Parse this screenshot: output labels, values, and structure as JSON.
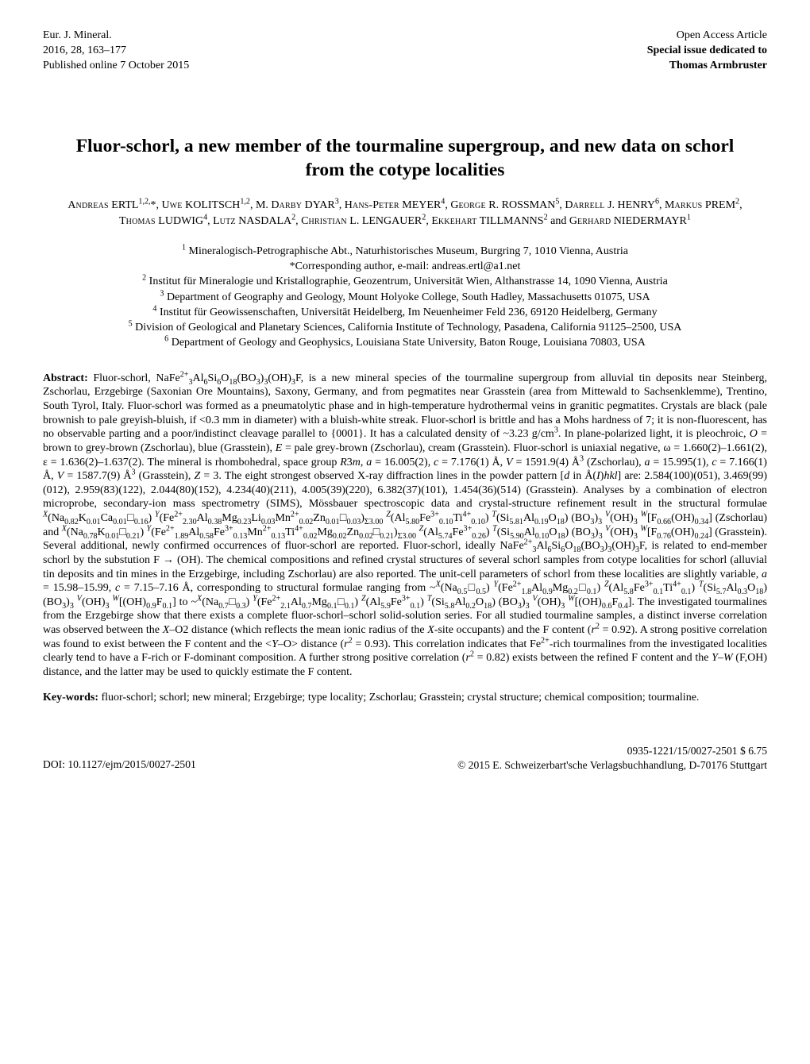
{
  "header": {
    "left": [
      "Eur. J. Mineral.",
      "2016, 28, 163–177",
      "Published online 7 October 2015"
    ],
    "right_plain": "Open Access Article",
    "right_bold1": "Special issue dedicated to",
    "right_bold2": "Thomas Armbruster"
  },
  "title": "Fluor-schorl, a new member of the tourmaline supergroup, and new data on schorl from the cotype localities",
  "authors_html": "A<span class='sc'>ndreas</span> ERTL<sup>1,2,</sup>*, U<span class='sc'>we</span> KOLITSCH<sup>1,2</sup>, M. D<span class='sc'>arby</span> DYAR<sup>3</sup>, H<span class='sc'>ans</span>-P<span class='sc'>eter</span> MEYER<sup>4</sup>, G<span class='sc'>eorge</span> R. ROSSMAN<sup>5</sup>, D<span class='sc'>arrell</span> J. HENRY<sup>6</sup>, M<span class='sc'>arkus</span> PREM<sup>2</sup>, T<span class='sc'>homas</span> LUDWIG<sup>4</sup>, L<span class='sc'>utz</span> NASDALA<sup>2</sup>, C<span class='sc'>hristian</span> L. LENGAUER<sup>2</sup>, E<span class='sc'>kkehart</span> TILLMANNS<sup>2</sup> and G<span class='sc'>erhard</span> NIEDERMAYR<sup>1</sup>",
  "affils_html": "<sup>1</sup> Mineralogisch-Petrographische Abt., Naturhistorisches Museum, Burgring 7, 1010 Vienna, Austria<br>*Corresponding author, e-mail: andreas.ertl@a1.net<br><sup>2</sup> Institut für Mineralogie und Kristallographie, Geozentrum, Universität Wien, Althanstrasse 14, 1090 Vienna, Austria<br><sup>3</sup> Department of Geography and Geology, Mount Holyoke College, South Hadley, Massachusetts 01075, USA<br><sup>4</sup> Institut für Geowissenschaften, Universität Heidelberg, Im Neuenheimer Feld 236, 69120 Heidelberg, Germany<br><sup>5</sup> Division of Geological and Planetary Sciences, California Institute of Technology, Pasadena, California 91125–2500, USA<br><sup>6</sup> Department of Geology and Geophysics, Louisiana State University, Baton Rouge, Louisiana 70803, USA",
  "abstract_label": "Abstract:",
  "abstract_html": "Fluor-schorl, NaFe<sup>2+</sup><sub>3</sub>Al<sub>6</sub>Si<sub>6</sub>O<sub>18</sub>(BO<sub>3</sub>)<sub>3</sub>(OH)<sub>3</sub>F, is a new mineral species of the tourmaline supergroup from alluvial tin deposits near Steinberg, Zschorlau, Erzgebirge (Saxonian Ore Mountains), Saxony, Germany, and from pegmatites near Grasstein (area from Mittewald to Sachsenklemme), Trentino, South Tyrol, Italy. Fluor-schorl was formed as a pneumatolytic phase and in high-temperature hydrothermal veins in granitic pegmatites. Crystals are black (pale brownish to pale greyish-bluish, if &lt;0.3 mm in diameter) with a bluish-white streak. Fluor-schorl is brittle and has a Mohs hardness of 7; it is non-fluorescent, has no observable parting and a poor/indistinct cleavage parallel to {0001}. It has a calculated density of ~3.23 g/cm<sup>3</sup>. In plane-polarized light, it is pleochroic, <i>O</i> = brown to grey-brown (Zschorlau), blue (Grasstein), <i>E</i> = pale grey-brown (Zschorlau), cream (Grasstein). Fluor-schorl is uniaxial negative, ω = 1.660(2)–1.661(2), ε = 1.636(2)–1.637(2). The mineral is rhombohedral, space group <i>R</i>3<i>m</i>, <i>a</i> = 16.005(2), <i>c</i> = 7.176(1) Å, <i>V</i> = 1591.9(4) Å<sup>3</sup> (Zschorlau), <i>a</i> = 15.995(1), <i>c</i> = 7.166(1) Å, <i>V</i> = 1587.7(9) Å<sup>3</sup> (Grasstein), <i>Z</i> = 3. The eight strongest observed X-ray diffraction lines in the powder pattern [<i>d</i> in Å(<i>I</i>)<i>hkl</i>] are: 2.584(100)(051), 3.469(99)(012), 2.959(83)(122), 2.044(80)(152), 4.234(40)(211), 4.005(39)(220), 6.382(37)(101), 1.454(36)(514) (Grasstein). Analyses by a combination of electron microprobe, secondary-ion mass spectrometry (SIMS), Mössbauer spectroscopic data and crystal-structure refinement result in the structural formulae <sup><i>X</i></sup>(Na<sub>0.82</sub>K<sub>0.01</sub>Ca<sub>0.01</sub>□<sub>0.16</sub>) <sup><i>Y</i></sup>(Fe<sup>2+</sup><sub>2.30</sub>Al<sub>0.38</sub>Mg<sub>0.23</sub>Li<sub>0.03</sub>Mn<sup>2+</sup><sub>0.02</sub>Zn<sub>0.01</sub>□<sub>0.03</sub>)<sub>Σ3.00</sub> <sup><i>Z</i></sup>(Al<sub>5.80</sub>Fe<sup>3+</sup><sub>0.10</sub>Ti<sup>4+</sup><sub>0.10</sub>) <sup><i>T</i></sup>(Si<sub>5.81</sub>Al<sub>0.19</sub>O<sub>18</sub>) (BO<sub>3</sub>)<sub>3</sub> <sup><i>V</i></sup>(OH)<sub>3</sub> <sup><i>W</i></sup>[F<sub>0.66</sub>(OH)<sub>0.34</sub>] (Zschorlau) and <sup><i>X</i></sup>(Na<sub>0.78</sub>K<sub>0.01</sub>□<sub>0.21</sub>) <sup><i>Y</i></sup>(Fe<sup>2+</sup><sub>1.89</sub>Al<sub>0.58</sub>Fe<sup>3+</sup><sub>0.13</sub>Mn<sup>2+</sup><sub>0.13</sub>Ti<sup>4+</sup><sub>0.02</sub>Mg<sub>0.02</sub>Zn<sub>0.02</sub>□<sub>0.21</sub>)<sub>Σ3.00</sub> <sup><i>Z</i></sup>(Al<sub>5.74</sub>Fe<sup>3+</sup><sub>0.26</sub>) <sup><i>T</i></sup>(Si<sub>5.90</sub>Al<sub>0.10</sub>O<sub>18</sub>) (BO<sub>3</sub>)<sub>3</sub> <sup><i>V</i></sup>(OH)<sub>3</sub> <sup><i>W</i></sup>[F<sub>0.76</sub>(OH)<sub>0.24</sub>] (Grasstein). Several additional, newly confirmed occurrences of fluor-schorl are reported. Fluor-schorl, ideally NaFe<sup>2+</sup><sub>3</sub>Al<sub>6</sub>Si<sub>6</sub>O<sub>18</sub>(BO<sub>3</sub>)<sub>3</sub>(OH)<sub>3</sub>F, is related to end-member schorl by the substution F → (OH). The chemical compositions and refined crystal structures of several schorl samples from cotype localities for schorl (alluvial tin deposits and tin mines in the Erzgebirge, including Zschorlau) are also reported. The unit-cell parameters of schorl from these localities are slightly variable, <i>a</i> = 15.98–15.99, <i>c</i> = 7.15–7.16 Å, corresponding to structural formulae ranging from ~<sup><i>X</i></sup>(Na<sub>0.5</sub>□<sub>0.5</sub>) <sup><i>Y</i></sup>(Fe<sup>2+</sup><sub>1.8</sub>Al<sub>0.9</sub>Mg<sub>0.2</sub>□<sub>0.1</sub>) <sup><i>Z</i></sup>(Al<sub>5.8</sub>Fe<sup>3+</sup><sub>0.1</sub>Ti<sup>4+</sup><sub>0.1</sub>) <sup><i>T</i></sup>(Si<sub>5.7</sub>Al<sub>0.3</sub>O<sub>18</sub>) (BO<sub>3</sub>)<sub>3</sub> <sup><i>V</i></sup>(OH)<sub>3</sub> <sup><i>W</i></sup>[(OH)<sub>0.9</sub>F<sub>0.1</sub>] to ~<sup><i>X</i></sup>(Na<sub>0.7</sub>□<sub>0.3</sub>) <sup><i>Y</i></sup>(Fe<sup>2+</sup><sub>2.1</sub>Al<sub>0.7</sub>Mg<sub>0.1</sub>□<sub>0.1</sub>) <sup><i>Z</i></sup>(Al<sub>5.9</sub>Fe<sup>3+</sup><sub>0.1</sub>) <sup><i>T</i></sup>(Si<sub>5.8</sub>Al<sub>0.2</sub>O<sub>18</sub>) (BO<sub>3</sub>)<sub>3</sub> <sup><i>V</i></sup>(OH)<sub>3</sub> <sup><i>W</i></sup>[(OH)<sub>0.6</sub>F<sub>0.4</sub>]. The investigated tourmalines from the Erzgebirge show that there exists a complete fluor-schorl–schorl solid-solution series. For all studied tourmaline samples, a distinct inverse correlation was observed between the <i>X</i>–O2 distance (which reflects the mean ionic radius of the <i>X</i>-site occupants) and the F content (<i>r</i><sup>2</sup> = 0.92). A strong positive correlation was found to exist between the F content and the &lt;<i>Y</i>–O&gt; distance (<i>r</i><sup>2</sup> = 0.93). This correlation indicates that Fe<sup>2+</sup>-rich tourmalines from the investigated localities clearly tend to have a F-rich or F-dominant composition. A further strong positive correlation (<i>r</i><sup>2</sup> = 0.82) exists between the refined F content and the <i>Y</i>–<i>W</i> (F,OH) distance, and the latter may be used to quickly estimate the F content.",
  "keywords_label": "Key-words:",
  "keywords_text": "fluor-schorl; schorl; new mineral; Erzgebirge; type locality; Zschorlau; Grasstein; crystal structure; chemical composition; tourmaline.",
  "footer": {
    "doi": "DOI: 10.1127/ejm/2015/0027-2501",
    "price": "0935-1221/15/0027-2501 $ 6.75",
    "copyright": "© 2015 E. Schweizerbart'sche Verlagsbuchhandlung, D-70176 Stuttgart"
  }
}
